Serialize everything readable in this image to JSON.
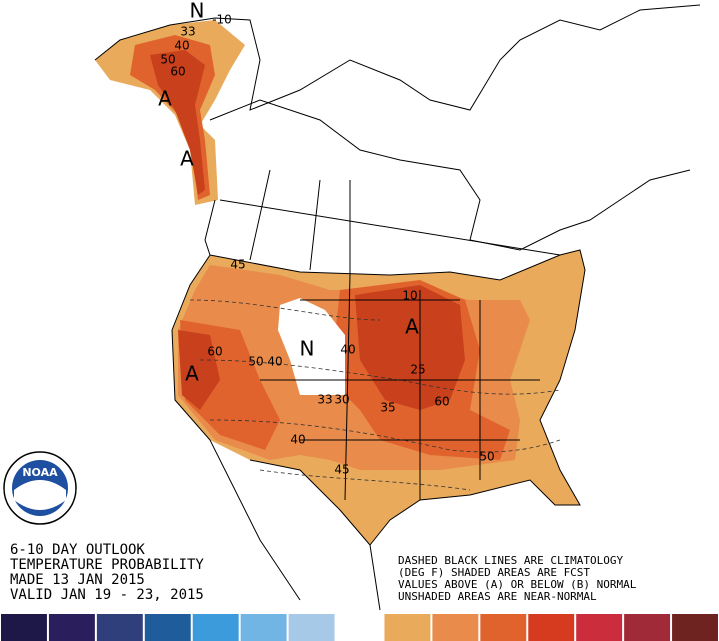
{
  "title_lines": [
    "6-10 DAY OUTLOOK",
    "TEMPERATURE PROBABILITY",
    "MADE  13 JAN 2015",
    "VALID  JAN 19 - 23, 2015"
  ],
  "note_lines": [
    "DASHED BLACK LINES ARE CLIMATOLOGY",
    "(DEG F) SHADED AREAS ARE FCST",
    "VALUES ABOVE (A) OR BELOW (B) NORMAL",
    "UNSHADED AREAS ARE NEAR-NORMAL"
  ],
  "logo": "NOAA",
  "map_labels": [
    "N",
    "-10",
    "33",
    "40",
    "50",
    "60",
    "A",
    "A",
    "45",
    "N",
    "40",
    "50",
    "40",
    "60",
    "A",
    "33",
    "30",
    "10",
    "A",
    "25",
    "35",
    "60",
    "50",
    "40",
    "45"
  ],
  "colorbar": [
    "#1e1848",
    "#2a1e5c",
    "#2f3f7c",
    "#1f5c9c",
    "#3b9bdb",
    "#70b5e4",
    "#a6c9e7",
    "#ffffff",
    "#e9aa5c",
    "#e98b4b",
    "#e0632d",
    "#d63b1f",
    "#cc2d3c",
    "#a12a38",
    "#6f2321"
  ]
}
